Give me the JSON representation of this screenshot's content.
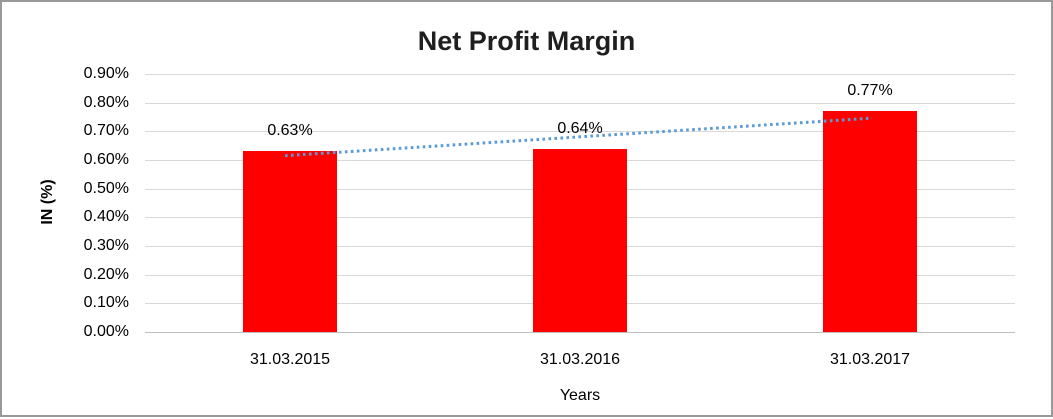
{
  "page": {
    "background": "#ffffff",
    "border_color": "#999999"
  },
  "chart_data": {
    "type": "bar",
    "title": "Net Profit Margin",
    "xlabel": "Years",
    "ylabel": "IN (%)",
    "categories": [
      "31.03.2015",
      "31.03.2016",
      "31.03.2017"
    ],
    "values": [
      0.63,
      0.64,
      0.77
    ],
    "value_labels": [
      "0.63%",
      "0.64%",
      "0.77%"
    ],
    "series_name": "Net Profit Margin",
    "ylim": [
      0,
      0.9
    ],
    "yticks": [
      {
        "label": "0.00%",
        "value": 0.0
      },
      {
        "label": "0.10%",
        "value": 0.1
      },
      {
        "label": "0.20%",
        "value": 0.2
      },
      {
        "label": "0.30%",
        "value": 0.3
      },
      {
        "label": "0.40%",
        "value": 0.4
      },
      {
        "label": "0.50%",
        "value": 0.5
      },
      {
        "label": "0.60%",
        "value": 0.6
      },
      {
        "label": "0.70%",
        "value": 0.7
      },
      {
        "label": "0.80%",
        "value": 0.8
      },
      {
        "label": "0.90%",
        "value": 0.9
      }
    ],
    "grid": true,
    "legend": "none",
    "bar_color": "#FF0000",
    "gridline_color": "#D9D9D9",
    "axis_line_color": "#BFBFBF",
    "text_color": "#000000",
    "title_color": "#1f1f1f",
    "trendline": {
      "style": "dotted",
      "color": "#5B9BD5",
      "start_value": 0.615,
      "end_value": 0.746
    }
  }
}
